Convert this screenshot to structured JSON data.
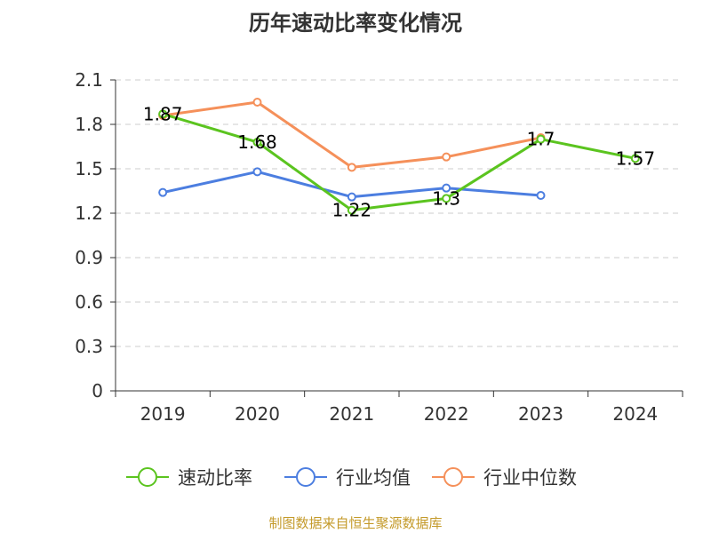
{
  "chart_data": {
    "type": "line",
    "title": "历年速动比率变化情况",
    "categories": [
      "2019",
      "2020",
      "2021",
      "2022",
      "2023",
      "2024"
    ],
    "ylim": [
      0,
      2.1
    ],
    "yticks": [
      "0",
      "0.3",
      "0.6",
      "0.9",
      "1.2",
      "1.5",
      "1.8",
      "2.1"
    ],
    "grid": true,
    "legend_position": "bottom",
    "series": [
      {
        "name": "速动比率",
        "color": "#5bc41f",
        "values": [
          1.87,
          1.68,
          1.22,
          1.3,
          1.7,
          1.57
        ],
        "labels": [
          "1.87",
          "1.68",
          "1.22",
          "1.3",
          "1.7",
          "1.57"
        ]
      },
      {
        "name": "行业均值",
        "color": "#4c7ee0",
        "values": [
          1.34,
          1.48,
          1.31,
          1.37,
          1.32,
          null
        ]
      },
      {
        "name": "行业中位数",
        "color": "#f5905a",
        "values": [
          1.86,
          1.95,
          1.51,
          1.58,
          1.71,
          null
        ]
      }
    ]
  },
  "footer": {
    "source": "制图数据来自恒生聚源数据库",
    "color": "#c49a2a"
  }
}
